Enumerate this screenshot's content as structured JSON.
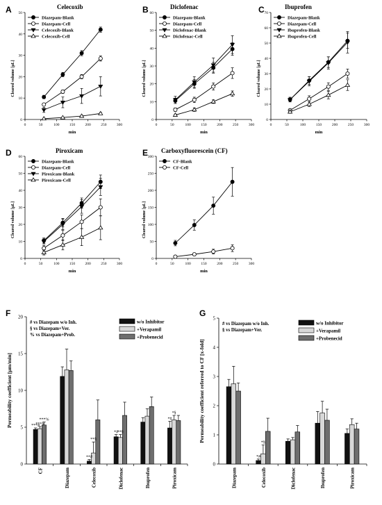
{
  "chart_data": [
    {
      "type": "line",
      "panel": "A",
      "title": "Celecoxib",
      "xlabel": "min",
      "ylabel": "Cleared volume [µL]",
      "xlim": [
        0,
        300
      ],
      "ylim": [
        0,
        50
      ],
      "xticks": [
        "0",
        "50",
        "100",
        "150",
        "200",
        "250",
        "300"
      ],
      "yticks": [
        "0",
        "10",
        "20",
        "30",
        "40",
        "50"
      ],
      "legend_position": "top-left",
      "series": [
        {
          "name": "Diazepam-Blank",
          "marker": "filled-circle",
          "x": [
            60,
            120,
            180,
            240
          ],
          "y": [
            10.5,
            21,
            31,
            42
          ],
          "err": [
            0.8,
            1.0,
            1.2,
            1.2
          ]
        },
        {
          "name": "Diazepam-Cell",
          "marker": "open-circle",
          "x": [
            60,
            120,
            180,
            240
          ],
          "y": [
            7,
            13,
            20,
            28.5
          ],
          "err": [
            0.6,
            0.8,
            1.0,
            1.2
          ]
        },
        {
          "name": "Celecoxib-Blank",
          "marker": "filled-triangle-down",
          "x": [
            60,
            120,
            180,
            240
          ],
          "y": [
            4.5,
            8,
            11,
            15.5
          ],
          "err": [
            1.2,
            2.5,
            3.5,
            4.5
          ]
        },
        {
          "name": "Celecoxib-Cell",
          "marker": "open-triangle-up",
          "x": [
            60,
            120,
            180,
            240
          ],
          "y": [
            0.4,
            0.9,
            1.6,
            2.8
          ],
          "err": [
            0.2,
            0.3,
            0.4,
            0.5
          ]
        }
      ]
    },
    {
      "type": "line",
      "panel": "B",
      "title": "Diclofenac",
      "xlabel": "min",
      "ylabel": "Cleared volume [µL]",
      "xlim": [
        0,
        300
      ],
      "ylim": [
        0,
        60
      ],
      "xticks": [
        "0",
        "50",
        "100",
        "150",
        "200",
        "250",
        "300"
      ],
      "yticks": [
        "0",
        "10",
        "20",
        "30",
        "40",
        "50",
        "60"
      ],
      "legend_position": "top-left",
      "series": [
        {
          "name": "Diazepam-Blank",
          "marker": "filled-circle",
          "x": [
            60,
            120,
            180,
            240
          ],
          "y": [
            10.5,
            20,
            29,
            39.5
          ],
          "err": [
            1.5,
            2.5,
            3,
            3.5
          ]
        },
        {
          "name": "Diazepam-Cell",
          "marker": "open-circle",
          "x": [
            60,
            120,
            180,
            240
          ],
          "y": [
            5.5,
            11,
            18.5,
            26
          ],
          "err": [
            1,
            1.5,
            2,
            3
          ]
        },
        {
          "name": "Diclofenac-Blank",
          "marker": "filled-triangle-down",
          "x": [
            60,
            120,
            180,
            240
          ],
          "y": [
            11,
            21,
            30.5,
            42
          ],
          "err": [
            2,
            3,
            4,
            5
          ]
        },
        {
          "name": "Diclofenac-Cell",
          "marker": "open-triangle-up",
          "x": [
            60,
            120,
            180,
            240
          ],
          "y": [
            2.5,
            5.5,
            10,
            14.5
          ],
          "err": [
            0.5,
            1,
            1,
            1.5
          ]
        }
      ]
    },
    {
      "type": "line",
      "panel": "C",
      "title": "Ibuprofen",
      "xlabel": "min",
      "ylabel": "Cleared volume [µL]",
      "xlim": [
        0,
        300
      ],
      "ylim": [
        0,
        70
      ],
      "xticks": [
        "0",
        "50",
        "100",
        "150",
        "200",
        "250",
        "300"
      ],
      "yticks": [
        "0",
        "10",
        "20",
        "30",
        "40",
        "50",
        "60",
        "70"
      ],
      "legend_position": "top-left",
      "series": [
        {
          "name": "Diazepam-Blank",
          "marker": "filled-circle",
          "x": [
            60,
            120,
            180,
            240
          ],
          "y": [
            13,
            25.5,
            37.5,
            51.5
          ],
          "err": [
            1.5,
            2.5,
            3.5,
            5
          ]
        },
        {
          "name": "Diazepam-Cell",
          "marker": "open-circle",
          "x": [
            60,
            120,
            180,
            240
          ],
          "y": [
            6,
            13.5,
            21.5,
            30
          ],
          "err": [
            1,
            2,
            2.5,
            3
          ]
        },
        {
          "name": "Ibuprofen-Blank",
          "marker": "filled-triangle-down",
          "x": [
            60,
            120,
            180,
            240
          ],
          "y": [
            13,
            25,
            37,
            50.5
          ],
          "err": [
            1.5,
            3,
            4,
            7
          ]
        },
        {
          "name": "Ibuprofen-Cell",
          "marker": "open-triangle-up",
          "x": [
            60,
            120,
            180,
            240
          ],
          "y": [
            5,
            10,
            16,
            22.5
          ],
          "err": [
            1,
            1.5,
            2.5,
            3.5
          ]
        }
      ]
    },
    {
      "type": "line",
      "panel": "D",
      "title": "Piroxicam",
      "xlabel": "min",
      "ylabel": "Cleared volume [µL]",
      "xlim": [
        0,
        300
      ],
      "ylim": [
        0,
        60
      ],
      "xticks": [
        "0",
        "50",
        "100",
        "150",
        "200",
        "250",
        "300"
      ],
      "yticks": [
        "0",
        "10",
        "20",
        "30",
        "40",
        "50",
        "60"
      ],
      "legend_position": "top-left",
      "series": [
        {
          "name": "Diazepam-Blank",
          "marker": "filled-circle",
          "x": [
            60,
            120,
            180,
            240
          ],
          "y": [
            10.5,
            21,
            32.5,
            45
          ],
          "err": [
            1.5,
            2.5,
            3,
            4
          ]
        },
        {
          "name": "Diazepam-Cell",
          "marker": "open-circle",
          "x": [
            60,
            120,
            180,
            240
          ],
          "y": [
            6,
            13.5,
            21.5,
            30
          ],
          "err": [
            1.5,
            3,
            4,
            5
          ]
        },
        {
          "name": "Piroxicam-Blank",
          "marker": "filled-triangle-down",
          "x": [
            60,
            120,
            180,
            240
          ],
          "y": [
            10,
            20,
            30.5,
            42
          ],
          "err": [
            1.5,
            3,
            4,
            5
          ]
        },
        {
          "name": "Piroxicam-Cell",
          "marker": "open-triangle-up",
          "x": [
            60,
            120,
            180,
            240
          ],
          "y": [
            3.5,
            8,
            12.5,
            18
          ],
          "err": [
            1.5,
            3,
            5,
            7
          ]
        }
      ]
    },
    {
      "type": "line",
      "panel": "E",
      "title": "Carboxyfluorescein (CF)",
      "xlabel": "min",
      "ylabel": "Cleared volume [µL]",
      "xlim": [
        0,
        300
      ],
      "ylim": [
        0,
        300
      ],
      "xticks": [
        "0",
        "50",
        "100",
        "150",
        "200",
        "250",
        "300"
      ],
      "yticks": [
        "0",
        "50",
        "100",
        "150",
        "200",
        "250",
        "300"
      ],
      "legend_position": "top-left",
      "series": [
        {
          "name": "CF-Blank",
          "marker": "filled-circle",
          "x": [
            60,
            120,
            180,
            240
          ],
          "y": [
            45,
            98,
            155,
            225
          ],
          "err": [
            8,
            15,
            25,
            42
          ]
        },
        {
          "name": "CF-Cell",
          "marker": "open-circle",
          "x": [
            60,
            120,
            180,
            240
          ],
          "y": [
            5,
            12,
            20,
            30
          ],
          "err": [
            2,
            4,
            7,
            10
          ]
        }
      ]
    },
    {
      "type": "bar",
      "panel": "F",
      "xlabel": "",
      "ylabel": "Permeability coefficient [µm/min]",
      "ylim": [
        0,
        20
      ],
      "yticks": [
        "0",
        "5",
        "10",
        "15",
        "20"
      ],
      "categories": [
        "CF",
        "Diazepam",
        "Celecoxib",
        "Diclofenac",
        "Ibuprofen",
        "Piroxicam"
      ],
      "legend_position": "top-right",
      "notes": [
        "#  vs Diazepam w/o Inh.",
        "§  vs Diazepam+Ver.",
        "% vs Diazepam+Prob."
      ],
      "series": [
        {
          "name": "w/o Inhibitor",
          "color": "#111111",
          "values": [
            4.7,
            11.9,
            0.4,
            3.7,
            5.7,
            4.9
          ],
          "err": [
            0.2,
            1.3,
            0.2,
            0.3,
            0.6,
            0.9
          ]
        },
        {
          "name": "+Verapamil",
          "color": "#d8d8d8",
          "values": [
            4.8,
            12.8,
            1.5,
            3.6,
            6.5,
            6.0
          ],
          "err": [
            0.3,
            2.8,
            1.5,
            0.4,
            1.0,
            0.6
          ]
        },
        {
          "name": "+Probenecid",
          "color": "#6e6e6e",
          "values": [
            5.3,
            12.7,
            6.0,
            6.6,
            7.8,
            5.9
          ],
          "err": [
            0.4,
            1.3,
            2.7,
            1.8,
            1.3,
            0.7
          ]
        }
      ],
      "annotations": [
        {
          "category": "CF",
          "series": 0,
          "text": "***#"
        },
        {
          "category": "CF",
          "series": 1,
          "text": "***§"
        },
        {
          "category": "CF",
          "series": 2,
          "text": "***%"
        },
        {
          "category": "Celecoxib",
          "series": 0,
          "text": "**#"
        },
        {
          "category": "Celecoxib",
          "series": 1,
          "text": "**§"
        },
        {
          "category": "Diclofenac",
          "series": 0,
          "text": "*#"
        },
        {
          "category": "Diclofenac",
          "series": 1,
          "text": "**§"
        },
        {
          "category": "Piroxicam",
          "series": 0,
          "text": "*#"
        },
        {
          "category": "Piroxicam",
          "series": 1,
          "text": "*§"
        }
      ]
    },
    {
      "type": "bar",
      "panel": "G",
      "xlabel": "",
      "ylabel": "Permeability coefficient referred to CF [x-fold]",
      "ylim": [
        0,
        5
      ],
      "yticks": [
        "0",
        "1",
        "2",
        "3",
        "4",
        "5"
      ],
      "categories": [
        "Diazepam",
        "Celecoxib",
        "Diclofenac",
        "Ibuprofen",
        "Piroxicam"
      ],
      "legend_position": "top-right",
      "notes": [
        "#  vs Diazepam w/o Inh.",
        "§  vs Diazepam+Ver."
      ],
      "series": [
        {
          "name": "w/o Inhibitor",
          "color": "#111111",
          "values": [
            2.65,
            0.12,
            0.78,
            1.4,
            1.05
          ],
          "err": [
            0.25,
            0.05,
            0.08,
            0.4,
            0.15
          ]
        },
        {
          "name": "+Verapamil",
          "color": "#d8d8d8",
          "values": [
            2.75,
            0.35,
            0.83,
            1.75,
            1.35
          ],
          "err": [
            0.6,
            0.3,
            0.08,
            0.4,
            0.2
          ]
        },
        {
          "name": "+Probenecid",
          "color": "#6e6e6e",
          "values": [
            2.5,
            1.12,
            1.1,
            1.5,
            1.2
          ],
          "err": [
            0.28,
            0.45,
            0.22,
            0.38,
            0.2
          ]
        }
      ],
      "annotations": [
        {
          "category": "Celecoxib",
          "series": 0,
          "text": "*#"
        },
        {
          "category": "Celecoxib",
          "series": 1,
          "text": "*§"
        }
      ]
    }
  ]
}
